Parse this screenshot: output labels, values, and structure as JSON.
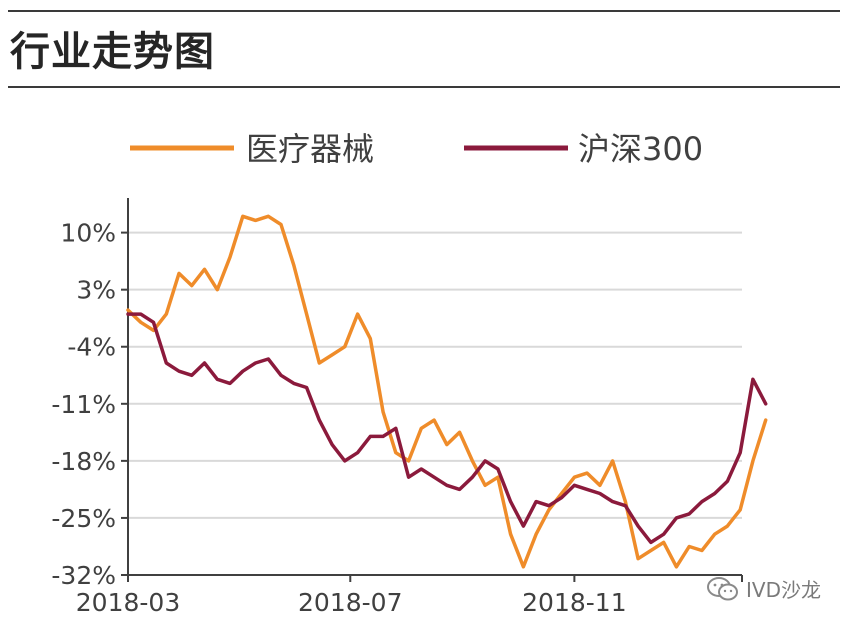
{
  "title": "行业走势图",
  "watermark": "IVD沙龙",
  "colors": {
    "medical": "#ef8c2a",
    "hs300": "#8b1a3c",
    "grid": "#d9d9d9",
    "axis": "#404040"
  },
  "chart_data": {
    "type": "line",
    "title": "",
    "xlabel": "",
    "ylabel": "",
    "ylim": [
      -32,
      14
    ],
    "yticks": [
      10,
      3,
      -4,
      -11,
      -18,
      -25,
      -32
    ],
    "ytick_labels": [
      "10%",
      "3%",
      "-4%",
      "-11%",
      "-18%",
      "-25%",
      "-32%"
    ],
    "xticks": [
      "2018-03",
      "2018-07",
      "2018-11"
    ],
    "xlim": [
      "2018-03",
      "2019-02"
    ],
    "grid": true,
    "legend_position": "top",
    "series": [
      {
        "name": "医疗器械",
        "color": "#ef8c2a",
        "x": [
          "2018-03-01",
          "2018-03-08",
          "2018-03-15",
          "2018-03-22",
          "2018-03-29",
          "2018-04-05",
          "2018-04-12",
          "2018-04-19",
          "2018-04-26",
          "2018-05-03",
          "2018-05-10",
          "2018-05-17",
          "2018-05-24",
          "2018-05-31",
          "2018-06-07",
          "2018-06-14",
          "2018-06-21",
          "2018-06-28",
          "2018-07-05",
          "2018-07-12",
          "2018-07-19",
          "2018-07-26",
          "2018-08-02",
          "2018-08-09",
          "2018-08-16",
          "2018-08-23",
          "2018-08-30",
          "2018-09-06",
          "2018-09-13",
          "2018-09-20",
          "2018-09-27",
          "2018-10-04",
          "2018-10-11",
          "2018-10-18",
          "2018-10-25",
          "2018-11-01",
          "2018-11-08",
          "2018-11-15",
          "2018-11-22",
          "2018-11-29",
          "2018-12-06",
          "2018-12-13",
          "2018-12-20",
          "2018-12-27",
          "2019-01-03",
          "2019-01-10",
          "2019-01-17",
          "2019-01-24",
          "2019-01-31",
          "2019-02-07",
          "2019-02-14"
        ],
        "values": [
          0.5,
          -1,
          -2,
          0,
          5,
          3.5,
          5.5,
          3,
          7,
          12,
          11.5,
          12,
          11,
          6,
          0,
          -6,
          -5,
          -4,
          0,
          -3,
          -12,
          -17,
          -18,
          -14,
          -13,
          -16,
          -14.5,
          -18,
          -21,
          -20,
          -27,
          -31,
          -27,
          -24,
          -22,
          -20,
          -19.5,
          -21,
          -18,
          -23,
          -30,
          -29,
          -28,
          -31,
          -28.5,
          -29,
          -27,
          -26,
          -24,
          -18,
          -13
        ]
      },
      {
        "name": "沪深300",
        "color": "#8b1a3c",
        "x": [
          "2018-03-01",
          "2018-03-08",
          "2018-03-15",
          "2018-03-22",
          "2018-03-29",
          "2018-04-05",
          "2018-04-12",
          "2018-04-19",
          "2018-04-26",
          "2018-05-03",
          "2018-05-10",
          "2018-05-17",
          "2018-05-24",
          "2018-05-31",
          "2018-06-07",
          "2018-06-14",
          "2018-06-21",
          "2018-06-28",
          "2018-07-05",
          "2018-07-12",
          "2018-07-19",
          "2018-07-26",
          "2018-08-02",
          "2018-08-09",
          "2018-08-16",
          "2018-08-23",
          "2018-08-30",
          "2018-09-06",
          "2018-09-13",
          "2018-09-20",
          "2018-09-27",
          "2018-10-04",
          "2018-10-11",
          "2018-10-18",
          "2018-10-25",
          "2018-11-01",
          "2018-11-08",
          "2018-11-15",
          "2018-11-22",
          "2018-11-29",
          "2018-12-06",
          "2018-12-13",
          "2018-12-20",
          "2018-12-27",
          "2019-01-03",
          "2019-01-10",
          "2019-01-17",
          "2019-01-24",
          "2019-01-31",
          "2019-02-07",
          "2019-02-14"
        ],
        "values": [
          0,
          0,
          -1,
          -6,
          -7,
          -7.5,
          -6,
          -8,
          -8.5,
          -7,
          -6,
          -5.5,
          -7.5,
          -8.5,
          -9,
          -13,
          -16,
          -18,
          -17,
          -15,
          -15,
          -14,
          -20,
          -19,
          -20,
          -21,
          -21.5,
          -20,
          -18,
          -19,
          -23,
          -26,
          -23,
          -23.5,
          -22.5,
          -21,
          -21.5,
          -22,
          -23,
          -23.5,
          -26,
          -28,
          -27,
          -25,
          -24.5,
          -23,
          -22,
          -20.5,
          -17,
          -8,
          -11
        ]
      }
    ]
  }
}
